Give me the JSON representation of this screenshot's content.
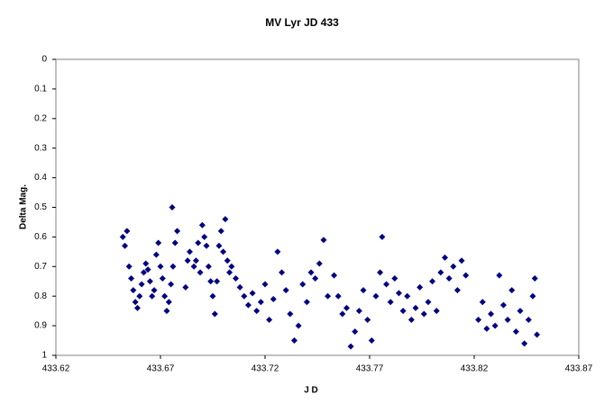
{
  "chart_data": {
    "type": "scatter",
    "title": "MV Lyr JD 433",
    "x_label": "J D",
    "y_label": "Delta Mag.",
    "color": "#000080",
    "y_inverted": true,
    "xlim": [
      433.62,
      433.87
    ],
    "xticks": [
      433.62,
      433.67,
      433.72,
      433.77,
      433.82,
      433.87
    ],
    "ylim": [
      0,
      1
    ],
    "yticks": [
      0,
      0.1,
      0.2,
      0.3,
      0.4,
      0.5,
      0.6,
      0.7,
      0.8,
      0.9,
      1
    ],
    "series": [
      {
        "name": "Delta Mag.",
        "color": "#000080",
        "x": [
          433.652,
          433.653,
          433.654,
          433.655,
          433.656,
          433.657,
          433.658,
          433.659,
          433.66,
          433.661,
          433.662,
          433.663,
          433.664,
          433.665,
          433.666,
          433.667,
          433.668,
          433.669,
          433.67,
          433.671,
          433.672,
          433.673,
          433.674,
          433.675,
          433.676,
          433.677,
          433.678,
          433.6756,
          433.682,
          433.683,
          433.684,
          433.686,
          433.687,
          433.688,
          433.689,
          433.69,
          433.691,
          433.692,
          433.693,
          433.694,
          433.695,
          433.696,
          433.697,
          433.698,
          433.699,
          433.7,
          433.701,
          433.702,
          433.703,
          433.704,
          433.706,
          433.708,
          433.71,
          433.712,
          433.714,
          433.716,
          433.718,
          433.72,
          433.722,
          433.724,
          433.726,
          433.728,
          433.73,
          433.732,
          433.734,
          433.736,
          433.738,
          433.74,
          433.742,
          433.744,
          433.746,
          433.748,
          433.75,
          433.753,
          433.755,
          433.757,
          433.759,
          433.761,
          433.763,
          433.765,
          433.767,
          433.769,
          433.771,
          433.773,
          433.775,
          433.776,
          433.778,
          433.78,
          433.782,
          433.784,
          433.786,
          433.788,
          433.79,
          433.792,
          433.794,
          433.796,
          433.798,
          433.8,
          433.802,
          433.804,
          433.806,
          433.808,
          433.81,
          433.812,
          433.814,
          433.816,
          433.822,
          433.824,
          433.826,
          433.828,
          433.83,
          433.832,
          433.834,
          433.836,
          433.838,
          433.84,
          433.842,
          433.844,
          433.846,
          433.848,
          433.849,
          433.85
        ],
        "values": [
          0.6,
          0.63,
          0.58,
          0.7,
          0.74,
          0.78,
          0.82,
          0.84,
          0.8,
          0.76,
          0.72,
          0.69,
          0.71,
          0.75,
          0.8,
          0.78,
          0.66,
          0.62,
          0.7,
          0.74,
          0.8,
          0.85,
          0.82,
          0.76,
          0.7,
          0.62,
          0.58,
          0.5,
          0.77,
          0.68,
          0.65,
          0.7,
          0.68,
          0.62,
          0.72,
          0.56,
          0.6,
          0.63,
          0.7,
          0.75,
          0.8,
          0.86,
          0.75,
          0.63,
          0.58,
          0.65,
          0.54,
          0.68,
          0.72,
          0.7,
          0.74,
          0.77,
          0.8,
          0.83,
          0.79,
          0.85,
          0.82,
          0.76,
          0.88,
          0.81,
          0.65,
          0.72,
          0.78,
          0.86,
          0.95,
          0.9,
          0.76,
          0.82,
          0.72,
          0.74,
          0.69,
          0.61,
          0.8,
          0.73,
          0.8,
          0.86,
          0.84,
          0.97,
          0.92,
          0.85,
          0.78,
          0.88,
          0.95,
          0.8,
          0.72,
          0.6,
          0.76,
          0.82,
          0.74,
          0.79,
          0.85,
          0.8,
          0.88,
          0.84,
          0.77,
          0.86,
          0.82,
          0.75,
          0.85,
          0.72,
          0.67,
          0.74,
          0.7,
          0.78,
          0.68,
          0.73,
          0.88,
          0.82,
          0.91,
          0.86,
          0.9,
          0.73,
          0.83,
          0.88,
          0.78,
          0.92,
          0.85,
          0.96,
          0.88,
          0.8,
          0.74,
          0.93
        ]
      }
    ]
  }
}
